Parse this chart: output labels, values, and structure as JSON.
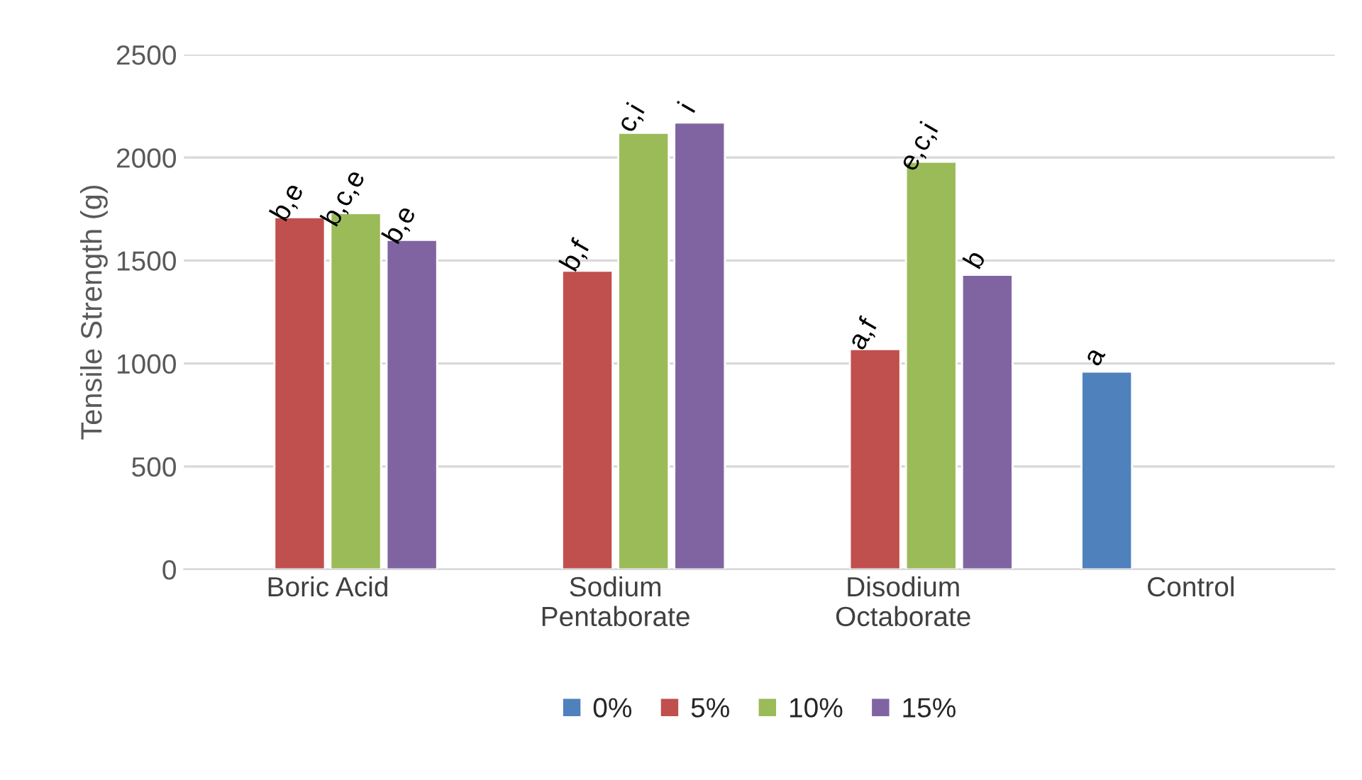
{
  "chart_data": {
    "type": "bar",
    "ylabel": "Tensile Strength (g)",
    "categories": [
      "Boric Acid",
      "Sodium\nPentaborate",
      "Disodium\nOctaborate",
      "Control"
    ],
    "series": [
      {
        "name": "0%",
        "color": "#4f81bd",
        "values": [
          null,
          null,
          null,
          960
        ],
        "value_labels": [
          null,
          null,
          null,
          "a"
        ]
      },
      {
        "name": "5%",
        "color": "#c0504d",
        "values": [
          1710,
          1450,
          1070,
          null
        ],
        "value_labels": [
          "b,e",
          "b,f",
          "a,f",
          null
        ]
      },
      {
        "name": "10%",
        "color": "#9bbb59",
        "values": [
          1730,
          2120,
          1980,
          null
        ],
        "value_labels": [
          "b,c,e",
          "c,i",
          "e,c,i",
          null
        ]
      },
      {
        "name": "15%",
        "color": "#8064a2",
        "values": [
          1600,
          2170,
          1430,
          null
        ],
        "value_labels": [
          "b,e",
          "i",
          "b",
          null
        ]
      }
    ],
    "ylim": [
      0,
      2500
    ],
    "yticks": [
      0,
      500,
      1000,
      1500,
      2000,
      2500
    ],
    "grid": "y",
    "legend": "bottom"
  }
}
